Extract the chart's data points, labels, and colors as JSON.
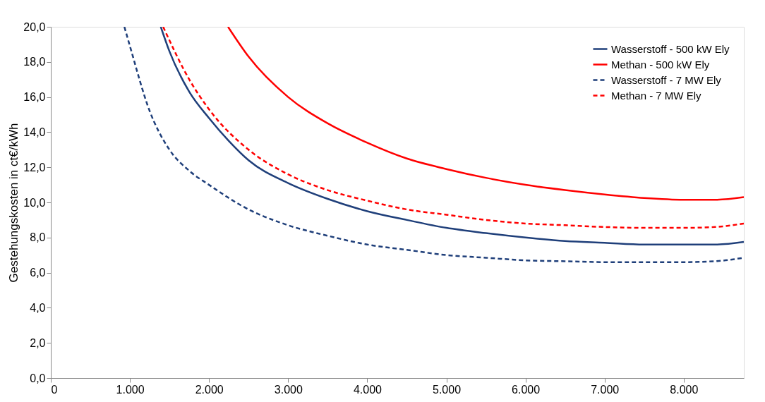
{
  "chart_data": {
    "type": "line",
    "ylabel": "Gestehungskosten in ct€/kWh",
    "xlim": [
      0,
      8760
    ],
    "ylim": [
      0,
      20
    ],
    "xticks": [
      0,
      {
        "value": 1000,
        "label": "1.000"
      },
      {
        "value": 2000,
        "label": "2.000"
      },
      {
        "value": 3000,
        "label": "3.000"
      },
      {
        "value": 4000,
        "label": "4.000"
      },
      {
        "value": 5000,
        "label": "5.000"
      },
      {
        "value": 6000,
        "label": "6.000"
      },
      {
        "value": 7000,
        "label": "7.000"
      },
      {
        "value": 8000,
        "label": "8.000"
      }
    ],
    "yticks": [
      {
        "value": 0,
        "label": "0,0"
      },
      {
        "value": 2,
        "label": "2,0"
      },
      {
        "value": 4,
        "label": "4,0"
      },
      {
        "value": 6,
        "label": "6,0"
      },
      {
        "value": 8,
        "label": "8,0"
      },
      {
        "value": 10,
        "label": "10,0"
      },
      {
        "value": 12,
        "label": "12,0"
      },
      {
        "value": 14,
        "label": "14,0"
      },
      {
        "value": 16,
        "label": "16,0"
      },
      {
        "value": 18,
        "label": "18,0"
      },
      {
        "value": 20,
        "label": "20,0"
      }
    ],
    "grid": false,
    "legend": "top right",
    "marker": "none",
    "series": [
      {
        "name": "Wasserstoff - 500 kW Ely",
        "color": "#1f3f7a",
        "line_style": "solid",
        "x": [
          1390,
          1500,
          1750,
          2000,
          2250,
          2500,
          3000,
          3500,
          4000,
          4500,
          5000,
          5500,
          6000,
          6500,
          7000,
          7500,
          8000,
          8400,
          8760
        ],
        "values": [
          20,
          18.6,
          16.3,
          14.8,
          13.5,
          12.4,
          11.1,
          10.2,
          9.5,
          9.0,
          8.55,
          8.25,
          8.0,
          7.8,
          7.7,
          7.6,
          7.6,
          7.6,
          7.75
        ]
      },
      {
        "name": "Methan - 500 kW Ely",
        "color": "#ff0000",
        "line_style": "solid",
        "x": [
          2240,
          2500,
          3000,
          3500,
          4000,
          4500,
          5000,
          5500,
          6000,
          6500,
          7000,
          7500,
          8000,
          8400,
          8760
        ],
        "values": [
          20,
          18.3,
          16.0,
          14.5,
          13.4,
          12.5,
          11.9,
          11.4,
          11.0,
          10.7,
          10.45,
          10.25,
          10.15,
          10.15,
          10.3
        ]
      },
      {
        "name": "Wasserstoff - 7 MW Ely",
        "color": "#1f3f7a",
        "line_style": "dashed",
        "x": [
          930,
          1000,
          1250,
          1500,
          1750,
          2000,
          2500,
          3000,
          3500,
          4000,
          4500,
          5000,
          5500,
          6000,
          6500,
          7000,
          7500,
          8000,
          8400,
          8760
        ],
        "values": [
          20,
          18.9,
          15.2,
          13.0,
          11.8,
          11.0,
          9.6,
          8.7,
          8.1,
          7.6,
          7.3,
          7.0,
          6.85,
          6.7,
          6.65,
          6.6,
          6.6,
          6.6,
          6.65,
          6.85
        ]
      },
      {
        "name": "Methan - 7 MW Ely",
        "color": "#ff0000",
        "line_style": "dashed",
        "x": [
          1420,
          1750,
          2000,
          2500,
          3000,
          3500,
          4000,
          4500,
          5000,
          5500,
          6000,
          6500,
          7000,
          7500,
          8000,
          8400,
          8760
        ],
        "values": [
          20,
          17.0,
          15.3,
          13.0,
          11.6,
          10.7,
          10.1,
          9.6,
          9.3,
          9.0,
          8.8,
          8.7,
          8.6,
          8.55,
          8.55,
          8.6,
          8.8
        ]
      }
    ]
  }
}
